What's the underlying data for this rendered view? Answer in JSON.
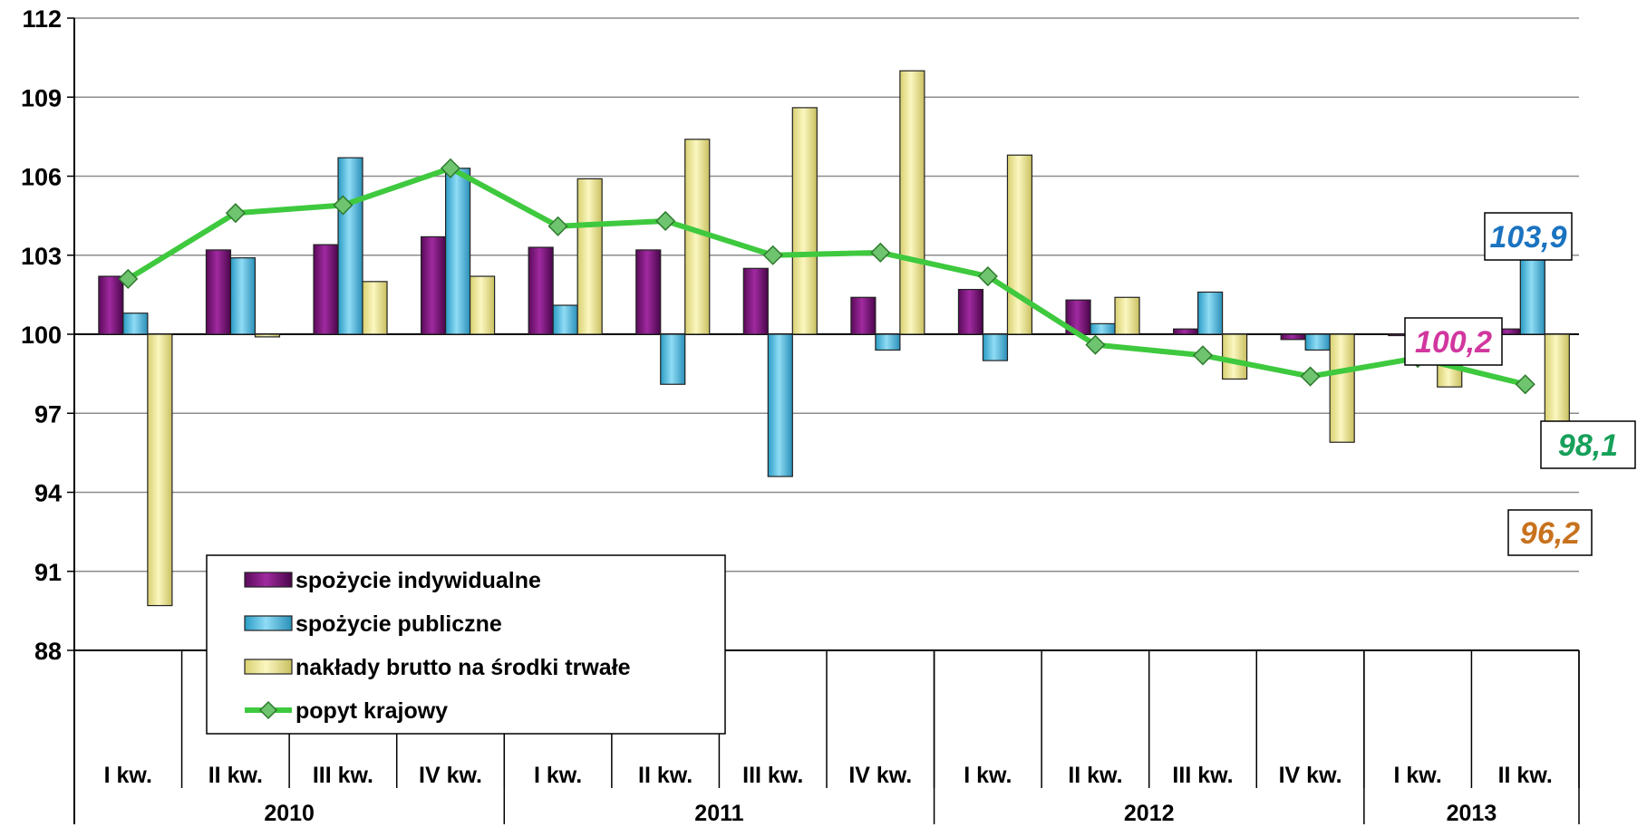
{
  "chart_data": {
    "type": "bar",
    "ylim": [
      88,
      112
    ],
    "yticks": [
      "112",
      "109",
      "106",
      "103",
      "100",
      "97",
      "94",
      "91",
      "88"
    ],
    "baseline": 100,
    "grid": true,
    "categories": [
      "I kw.",
      "II kw.",
      "III kw.",
      "IV kw.",
      "I kw.",
      "II kw.",
      "III kw.",
      "IV kw.",
      "I kw.",
      "II kw.",
      "III kw.",
      "IV kw.",
      "I kw.",
      "II kw."
    ],
    "years": [
      {
        "label": "2010",
        "span": 4
      },
      {
        "label": "2011",
        "span": 4
      },
      {
        "label": "2012",
        "span": 4
      },
      {
        "label": "2013",
        "span": 2
      }
    ],
    "series": [
      {
        "name": "spożycie indywidualne",
        "type": "bar",
        "color": "#8b1a8b",
        "values": [
          102.2,
          103.2,
          103.4,
          103.7,
          103.3,
          103.2,
          102.5,
          101.4,
          101.7,
          101.3,
          100.2,
          99.8,
          100.0,
          100.2
        ]
      },
      {
        "name": "spożycie publiczne",
        "type": "bar",
        "color": "#4fc3e8",
        "values": [
          100.8,
          102.9,
          106.7,
          106.3,
          101.1,
          98.1,
          94.6,
          99.4,
          99.0,
          100.4,
          101.6,
          99.4,
          99.5,
          103.9
        ]
      },
      {
        "name": "nakłady brutto na środki trwałe",
        "type": "bar",
        "color": "#f5f0a0",
        "values": [
          89.7,
          99.9,
          102.0,
          102.2,
          105.9,
          107.4,
          108.6,
          110.0,
          106.8,
          101.4,
          98.3,
          95.9,
          98.0,
          96.2
        ]
      },
      {
        "name": "popyt krajowy",
        "type": "line",
        "color": "#3ec93e",
        "values": [
          102.1,
          104.6,
          104.9,
          106.3,
          104.1,
          104.3,
          103.0,
          103.1,
          102.2,
          99.6,
          99.2,
          98.4,
          99.1,
          98.1
        ]
      }
    ],
    "annotations": [
      {
        "text": "103,9",
        "color": "#1a73c0"
      },
      {
        "text": "100,2",
        "color": "#d1379e"
      },
      {
        "text": "98,1",
        "color": "#17a05a"
      },
      {
        "text": "96,2",
        "color": "#c8721e"
      }
    ],
    "legend": "bottom-left"
  }
}
